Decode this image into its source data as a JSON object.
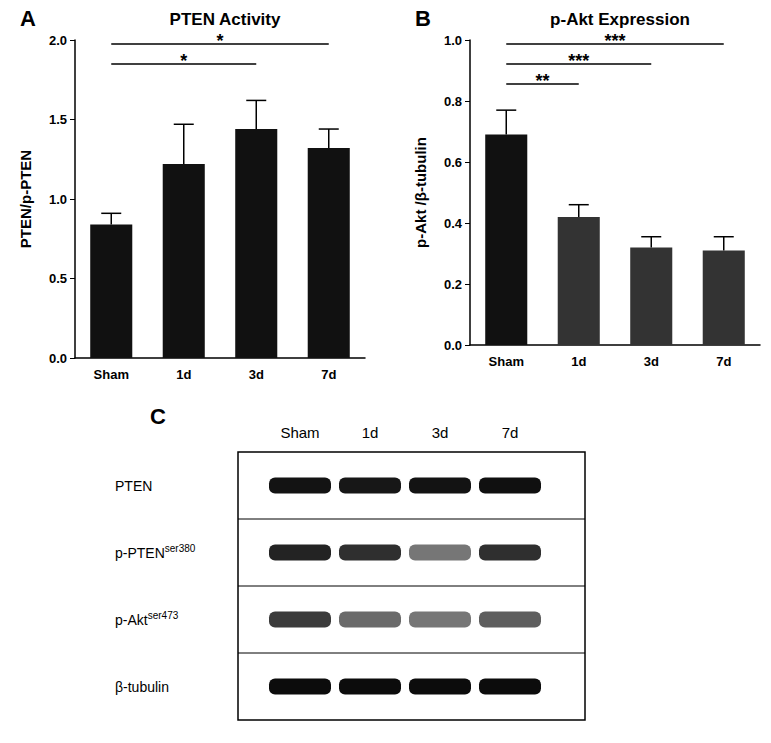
{
  "chart_data": [
    {
      "type": "bar",
      "panel": "A",
      "title": "PTEN Activity",
      "y_label": "PTEN/p-PTEN",
      "categories": [
        "Sham",
        "1d",
        "3d",
        "7d"
      ],
      "values": [
        0.84,
        1.22,
        1.44,
        1.32
      ],
      "errors": [
        0.07,
        0.25,
        0.18,
        0.12
      ],
      "color": "#111111",
      "ylim": [
        0,
        2
      ],
      "yticks": [
        {
          "value": 0,
          "label": "0.0"
        },
        {
          "value": 0.5,
          "label": "0.5"
        },
        {
          "value": 1,
          "label": "1.0"
        },
        {
          "value": 1.5,
          "label": "1.5"
        },
        {
          "value": 2,
          "label": "2.0"
        }
      ],
      "grid": false,
      "annotations": [
        {
          "from": "Sham",
          "to": "3d",
          "text": "*"
        },
        {
          "from": "Sham",
          "to": "7d",
          "text": "*"
        }
      ]
    },
    {
      "type": "bar",
      "panel": "B",
      "title": "p-Akt Expression",
      "y_label": "p-Akt /β-tubulin",
      "categories": [
        "Sham",
        "1d",
        "3d",
        "7d"
      ],
      "values": [
        0.69,
        0.42,
        0.32,
        0.31
      ],
      "errors": [
        0.08,
        0.04,
        0.035,
        0.045
      ],
      "colors": [
        "#111111",
        "#333333",
        "#333333",
        "#333333"
      ],
      "ylim": [
        0,
        1
      ],
      "yticks": [
        {
          "value": 0,
          "label": "0.0"
        },
        {
          "value": 0.2,
          "label": "0.2"
        },
        {
          "value": 0.4,
          "label": "0.4"
        },
        {
          "value": 0.6,
          "label": "0.6"
        },
        {
          "value": 0.8,
          "label": "0.8"
        },
        {
          "value": 1,
          "label": "1.0"
        }
      ],
      "grid": false,
      "annotations": [
        {
          "from": "Sham",
          "to": "1d",
          "text": "**"
        },
        {
          "from": "Sham",
          "to": "3d",
          "text": "***"
        },
        {
          "from": "Sham",
          "to": "7d",
          "text": "***"
        }
      ]
    }
  ],
  "blot": {
    "panel": "C",
    "lanes": [
      "Sham",
      "1d",
      "3d",
      "7d"
    ],
    "rows": [
      {
        "name": "PTEN",
        "superscript": "",
        "band_intensity": [
          0.92,
          0.9,
          0.92,
          0.93
        ]
      },
      {
        "name": "p-PTEN",
        "superscript": "ser380",
        "band_intensity": [
          0.85,
          0.8,
          0.5,
          0.8
        ]
      },
      {
        "name": "p-Akt",
        "superscript": "ser473",
        "band_intensity": [
          0.75,
          0.55,
          0.5,
          0.6
        ]
      },
      {
        "name": "β-tubulin",
        "superscript": "",
        "band_intensity": [
          0.95,
          0.95,
          0.95,
          0.95
        ]
      }
    ]
  }
}
